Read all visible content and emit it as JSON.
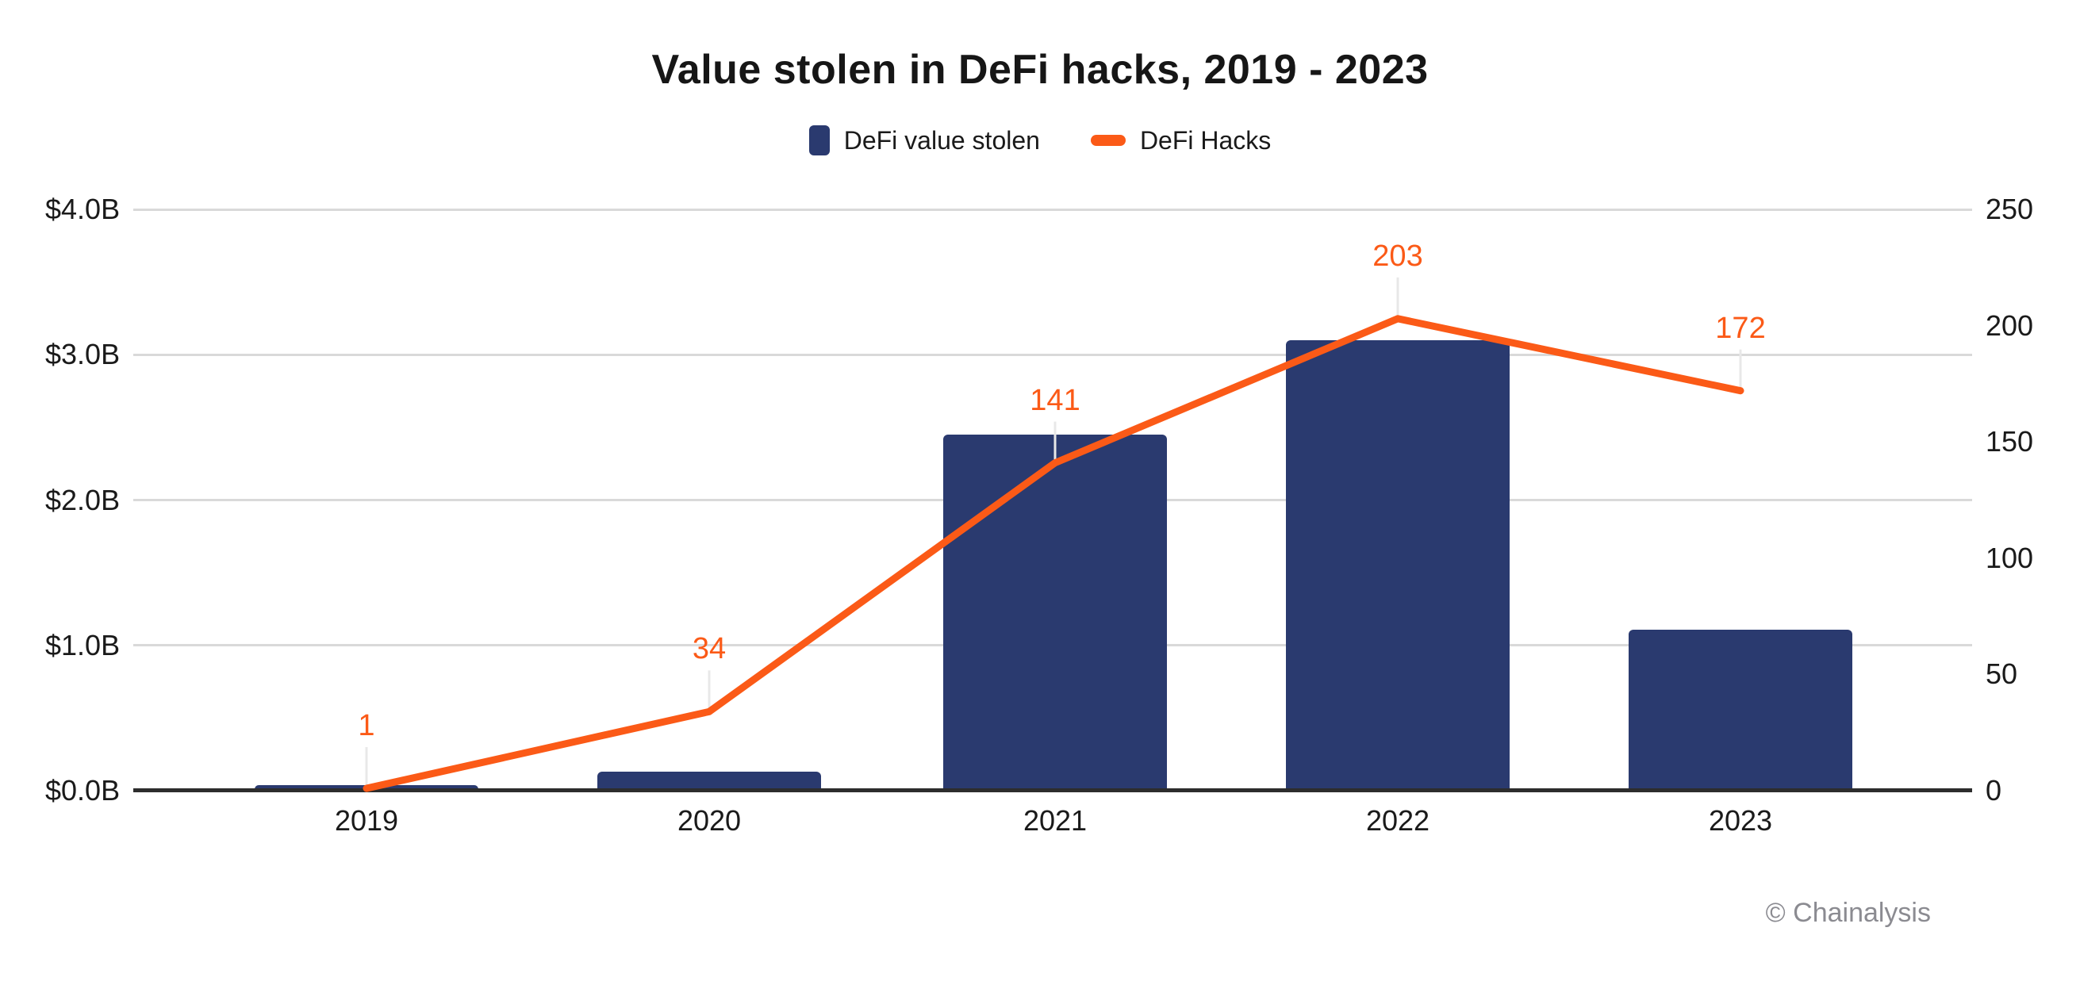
{
  "title": "Value stolen in DeFi hacks, 2019 - 2023",
  "legend": {
    "items": [
      {
        "label": "DeFi value stolen",
        "marker": "bar-swatch"
      },
      {
        "label": "DeFi Hacks",
        "marker": "line-swatch"
      }
    ]
  },
  "footer": {
    "copyright": "© Chainalysis"
  },
  "colors": {
    "bar": "#2a3a6f",
    "line": "#fb5a17",
    "gridline": "#d9d9d9",
    "axis_line": "#2d2d2d",
    "leader_line": "#e8e8e8",
    "text": "#1a1a1a",
    "muted_text": "#8b8b91"
  },
  "chart_data": {
    "type": "bar+line",
    "title": "Value stolen in DeFi hacks, 2019 - 2023",
    "categories": [
      "2019",
      "2020",
      "2021",
      "2022",
      "2023"
    ],
    "series": [
      {
        "name": "DeFi value stolen",
        "type": "bar",
        "axis": "left",
        "values": [
          0.04,
          0.13,
          2.45,
          3.1,
          1.11
        ]
      },
      {
        "name": "DeFi Hacks",
        "type": "line",
        "axis": "right",
        "values": [
          1,
          34,
          141,
          203,
          172
        ],
        "data_labels": [
          "1",
          "34",
          "141",
          "203",
          "172"
        ]
      }
    ],
    "left_axis": {
      "ticks_top_to_bottom": [
        "$4.0B",
        "$3.0B",
        "$2.0B",
        "$1.0B",
        "$0.0B"
      ],
      "min": 0,
      "max": 4.0
    },
    "right_axis": {
      "ticks_top_to_bottom": [
        250,
        200,
        150,
        100,
        50,
        0
      ],
      "min": 0,
      "max": 250
    },
    "grid": "horizontal",
    "legend_position": "top"
  }
}
